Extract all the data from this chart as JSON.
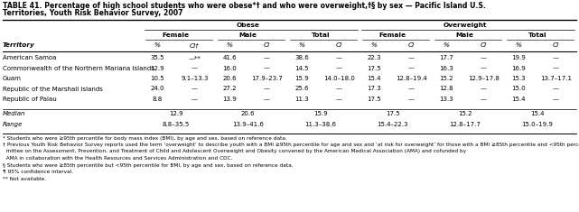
{
  "title_line1": "TABLE 41. Percentage of high school students who were obese*† and who were overweight,†§ by sex — Pacific Island U.S.",
  "title_line2": "Territories, Youth Risk Behavior Survey, 2007",
  "rows": [
    [
      "American Samoa",
      "35.5",
      "—**",
      "41.6",
      "—",
      "38.6",
      "—",
      "22.3",
      "—",
      "17.7",
      "—",
      "19.9",
      "—"
    ],
    [
      "Commonwealth of the Northern Mariana Islands",
      "12.9",
      "—",
      "16.0",
      "—",
      "14.5",
      "—",
      "17.5",
      "—",
      "16.3",
      "—",
      "16.9",
      "—"
    ],
    [
      "Guam",
      "10.5",
      "9.1–13.3",
      "20.6",
      "17.9–23.7",
      "15.9",
      "14.0–18.0",
      "15.4",
      "12.8–19.4",
      "15.2",
      "12.9–17.8",
      "15.3",
      "13.7–17.1"
    ],
    [
      "Republic of the Marshall Islands",
      "24.0",
      "—",
      "27.2",
      "—",
      "25.6",
      "—",
      "17.3",
      "—",
      "12.8",
      "—",
      "15.0",
      "—"
    ],
    [
      "Republic of Palau",
      "8.8",
      "—",
      "13.9",
      "—",
      "11.3",
      "—",
      "17.5",
      "—",
      "13.3",
      "—",
      "15.4",
      "—"
    ]
  ],
  "median_vals": [
    "12.9",
    "20.6",
    "15.9",
    "17.5",
    "15.2",
    "15.4"
  ],
  "range_vals": [
    "8.8–35.5",
    "13.9–41.6",
    "11.3–38.6",
    "15.4–22.3",
    "12.8–17.7",
    "15.0–19.9"
  ],
  "footnotes": [
    "* Students who were ≥95th percentile for body mass index (BMI), by age and sex, based on reference data.",
    "† Previous Youth Risk Behavior Survey reports used the term ‘overweight’ to describe youth with a BMI ≥95th percentile for age and sex and ‘at risk for overweight’ for those with a BMI ≥85th percentile and <95th percentile. However, this report uses the terms ‘obese’ and ‘overweight’ in accordance with the 2007 recommendations from the Expert Com-",
    "  mittee on the Assessment, Prevention, and Treatment of Child and Adolescent Overweight and Obesity convened by the American Medical Association (AMA) and cofunded by",
    "  AMA in collaboration with the Health Resources and Services Administration and CDC.",
    "§ Students who were ≥85th percentile but <95th percentile for BMI, by age and sex, based on reference data.",
    "¶ 95% confidence interval.",
    "** Not available."
  ],
  "bg_color": "#ffffff",
  "text_color": "#000000"
}
